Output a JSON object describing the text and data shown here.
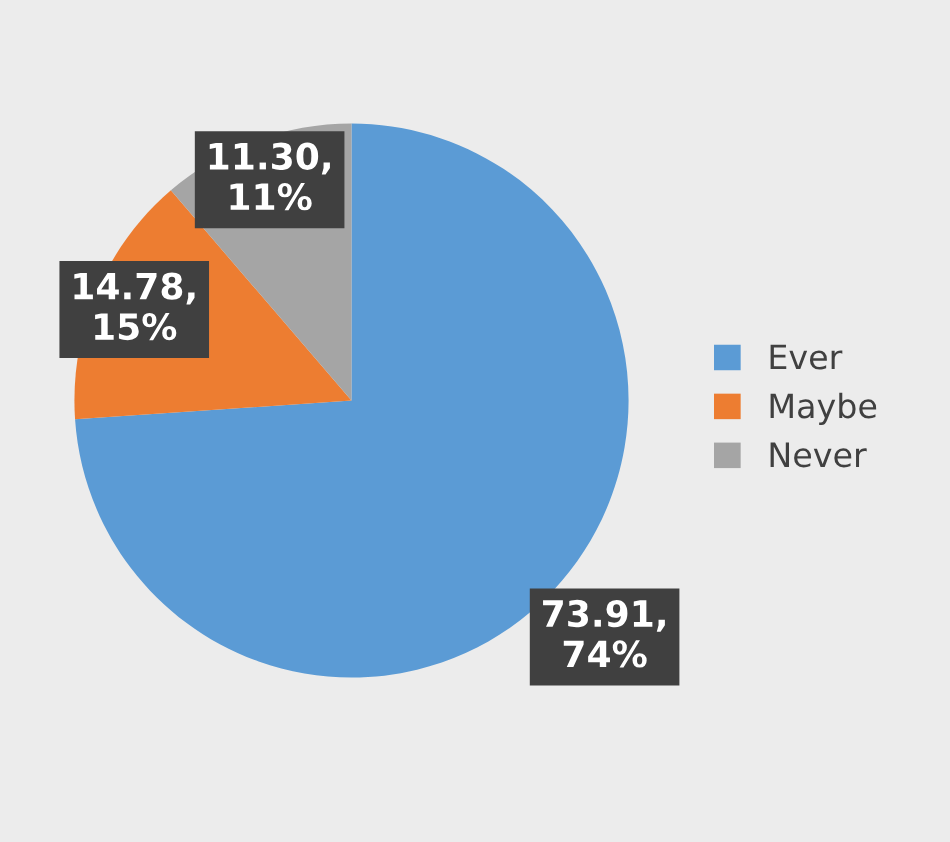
{
  "chart_data": {
    "type": "pie",
    "categories": [
      "Ever",
      "Maybe",
      "Never"
    ],
    "values": [
      73.91,
      14.78,
      11.3
    ],
    "colors": [
      "#5b9bd5",
      "#ed7d31",
      "#a5a5a5"
    ],
    "value_labels": [
      "73.91,\n74%",
      "14.78,\n15%",
      "11.30,\n11%"
    ],
    "legend": "right"
  }
}
